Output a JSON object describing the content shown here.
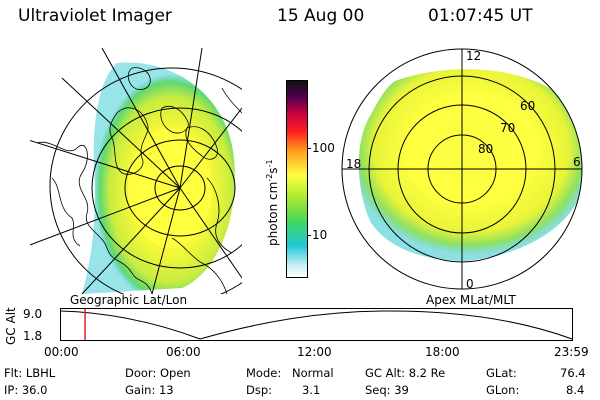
{
  "header": {
    "title": "Ultraviolet Imager",
    "date": "15 Aug 00",
    "time": "01:07:45 UT"
  },
  "colorbar": {
    "label": "photon cm",
    "label_sup1": "-2",
    "label_mid": "s",
    "label_sup2": "-1",
    "ticks": [
      {
        "label": "100",
        "value": 100
      },
      {
        "label": "10",
        "value": 10
      }
    ],
    "range": [
      2.5,
      600
    ],
    "colors": [
      "#ffffff",
      "#20c8d8",
      "#40d860",
      "#a8e830",
      "#ffff40",
      "#ffa020",
      "#ff2020",
      "#c00040",
      "#500050",
      "#101010"
    ]
  },
  "left_map": {
    "label": "Geographic Lat/Lon"
  },
  "right_map": {
    "label": "Apex  MLat/MLT",
    "mlt_labels": [
      {
        "label": "12",
        "hour": 12
      },
      {
        "label": "18",
        "hour": 18
      },
      {
        "label": "6",
        "hour": 6
      },
      {
        "label": "0",
        "hour": 0
      }
    ],
    "lat_labels": [
      {
        "label": "60",
        "lat": 60
      },
      {
        "label": "70",
        "lat": 70
      },
      {
        "label": "80",
        "lat": 80
      }
    ]
  },
  "altitude_plot": {
    "ylabel": "GC Alt",
    "yticks": [
      {
        "label": "9.0",
        "value": 9.0
      },
      {
        "label": "1.8",
        "value": 1.8
      }
    ],
    "xticks": [
      {
        "label": "00:00",
        "hour": 0
      },
      {
        "label": "06:00",
        "hour": 6
      },
      {
        "label": "12:00",
        "hour": 12
      },
      {
        "label": "18:00",
        "hour": 18
      },
      {
        "label": "23:59",
        "hour": 23.983
      }
    ],
    "current_time_hour": 1.13,
    "marker_color": "#e02020"
  },
  "info": {
    "filter": "Flt: LBHL",
    "ip": "IP: 36.0",
    "door": "Door: Open",
    "gain": "Gain: 13",
    "mode_label": "Mode:",
    "mode_value": "Normal",
    "dsp_label": "Dsp:",
    "dsp_value": "3.1",
    "gc_alt": "GC Alt: 8.2 Re",
    "seq": "Seq: 39",
    "glat_label": "GLat:",
    "glat_value": "76.4",
    "glon_label": "GLon:",
    "glon_value": "8.4"
  }
}
